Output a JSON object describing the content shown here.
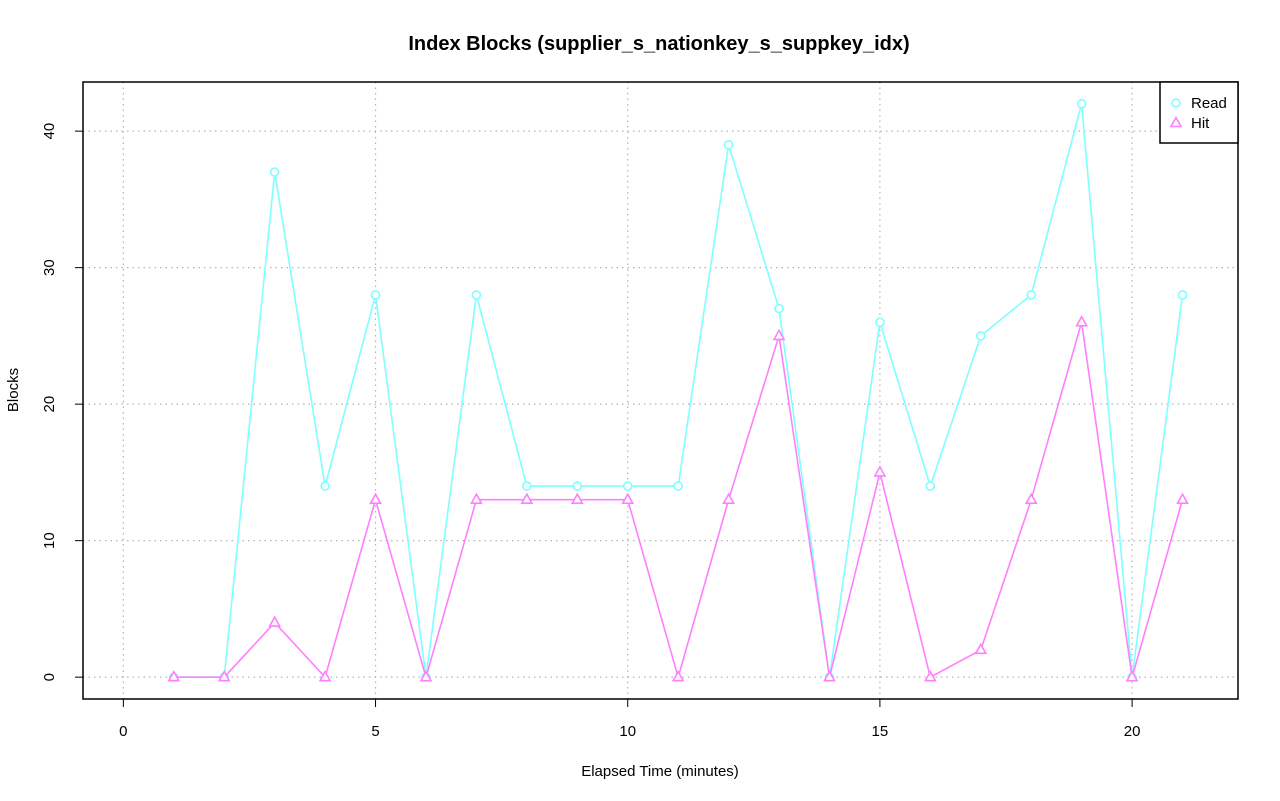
{
  "chart_data": {
    "type": "line",
    "title": "Index Blocks (supplier_s_nationkey_s_suppkey_idx)",
    "xlabel": "Elapsed Time (minutes)",
    "ylabel": "Blocks",
    "xlim": [
      -0.8,
      22.1
    ],
    "ylim": [
      -1.6,
      43.6
    ],
    "xticks": [
      0,
      5,
      10,
      15,
      20
    ],
    "yticks": [
      0,
      10,
      20,
      30,
      40
    ],
    "grid": true,
    "legend_position": "top-right",
    "x": [
      1,
      2,
      3,
      4,
      5,
      6,
      7,
      8,
      9,
      10,
      11,
      12,
      13,
      14,
      15,
      16,
      17,
      18,
      19,
      20,
      21
    ],
    "series": [
      {
        "name": "Read",
        "color": "#7fffff",
        "marker": "circle",
        "values": [
          0,
          0,
          37,
          14,
          28,
          0,
          28,
          14,
          14,
          14,
          14,
          39,
          27,
          0,
          26,
          14,
          25,
          28,
          42,
          0,
          28
        ]
      },
      {
        "name": "Hit",
        "color": "#ff7fff",
        "marker": "triangle",
        "values": [
          0,
          0,
          4,
          0,
          13,
          0,
          13,
          13,
          13,
          13,
          0,
          13,
          25,
          0,
          15,
          0,
          2,
          13,
          26,
          0,
          13
        ]
      }
    ]
  }
}
